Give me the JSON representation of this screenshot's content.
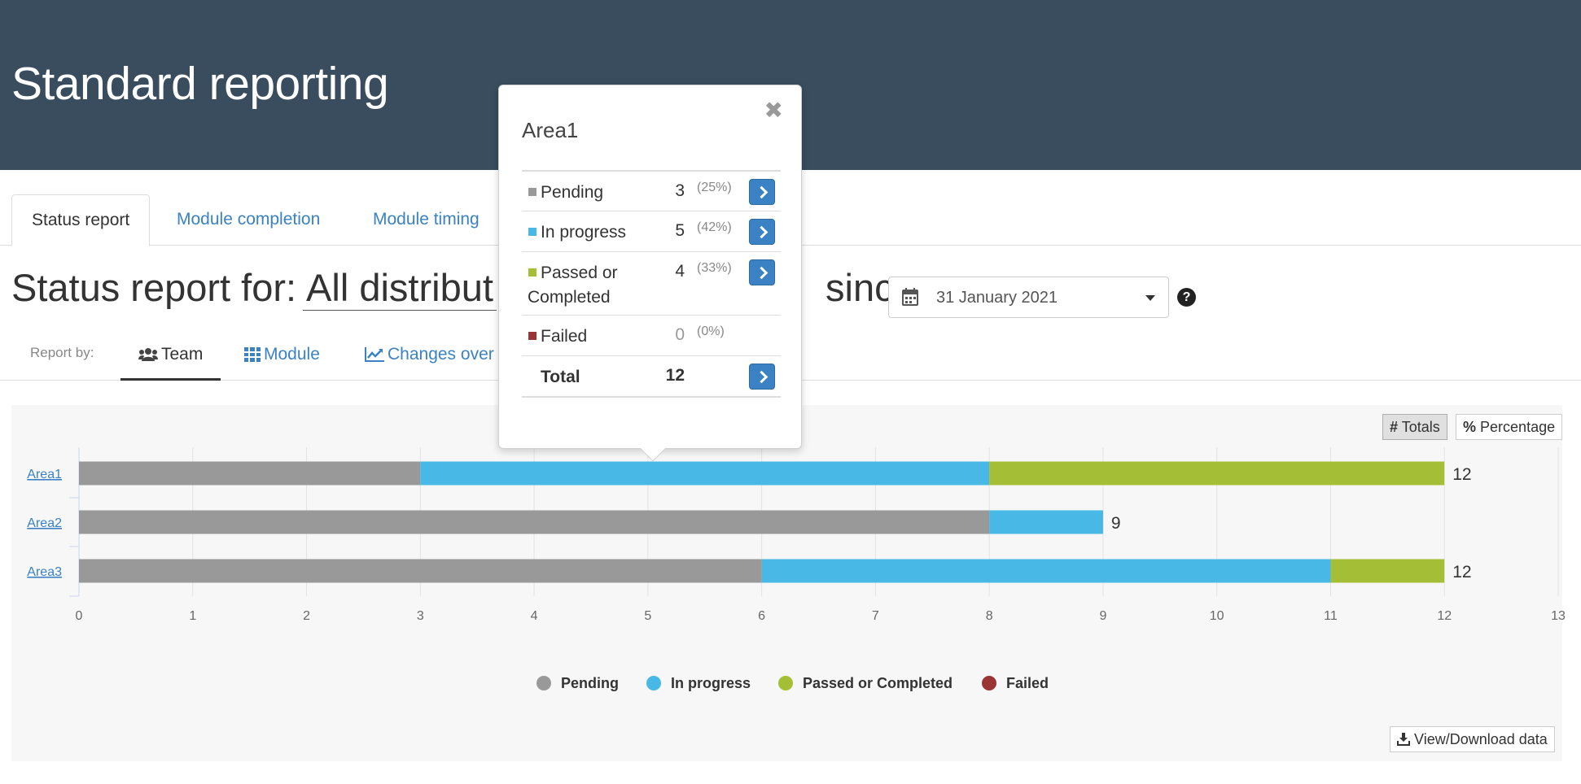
{
  "header": {
    "title": "Standard reporting"
  },
  "tabs": [
    {
      "label": "Status report"
    },
    {
      "label": "Module completion"
    },
    {
      "label": "Module timing"
    }
  ],
  "status": {
    "prefix": "Status report for:",
    "selection": "All distribut",
    "since": "since",
    "date": "31 January 2021"
  },
  "report_by": {
    "label": "Report by:",
    "options": [
      {
        "label": "Team",
        "icon": "users-icon"
      },
      {
        "label": "Module",
        "icon": "grid-icon"
      },
      {
        "label": "Changes over",
        "icon": "line-chart-icon"
      }
    ]
  },
  "toggles": {
    "totals": "Totals",
    "percentage": "Percentage"
  },
  "download_label": "View/Download data",
  "colors": {
    "header_bg": "#394d5e",
    "pending": "#999999",
    "in_progress": "#48b8e6",
    "passed": "#a4be35",
    "failed": "#9b3535",
    "link": "#3a82c4"
  },
  "popover": {
    "title": "Area1",
    "rows": [
      {
        "name": "Pending",
        "value": "3",
        "pct": "(25%)",
        "color": "#999999"
      },
      {
        "name": "In progress",
        "value": "5",
        "pct": "(42%)",
        "color": "#48b8e6"
      },
      {
        "name": "Passed or Completed",
        "value": "4",
        "pct": "(33%)",
        "color": "#a4be35"
      },
      {
        "name": "Failed",
        "value": "0",
        "pct": "(0%)",
        "color": "#9b3535"
      }
    ],
    "total_label": "Total",
    "total_value": "12"
  },
  "chart_data": {
    "type": "bar",
    "orientation": "horizontal",
    "stacked": true,
    "categories": [
      "Area1",
      "Area2",
      "Area3"
    ],
    "series": [
      {
        "name": "Pending",
        "values": [
          3,
          8,
          6
        ],
        "color": "#999999"
      },
      {
        "name": "In progress",
        "values": [
          5,
          1,
          5
        ],
        "color": "#48b8e6"
      },
      {
        "name": "Passed or Completed",
        "values": [
          4,
          0,
          1
        ],
        "color": "#a4be35"
      },
      {
        "name": "Failed",
        "values": [
          0,
          0,
          0
        ],
        "color": "#9b3535"
      }
    ],
    "totals": [
      12,
      9,
      12
    ],
    "xlim": [
      0,
      13
    ],
    "xticks": [
      0,
      1,
      2,
      3,
      4,
      5,
      6,
      7,
      8,
      9,
      10,
      11,
      12,
      13
    ],
    "grid": true,
    "legend": "bottom-center"
  }
}
